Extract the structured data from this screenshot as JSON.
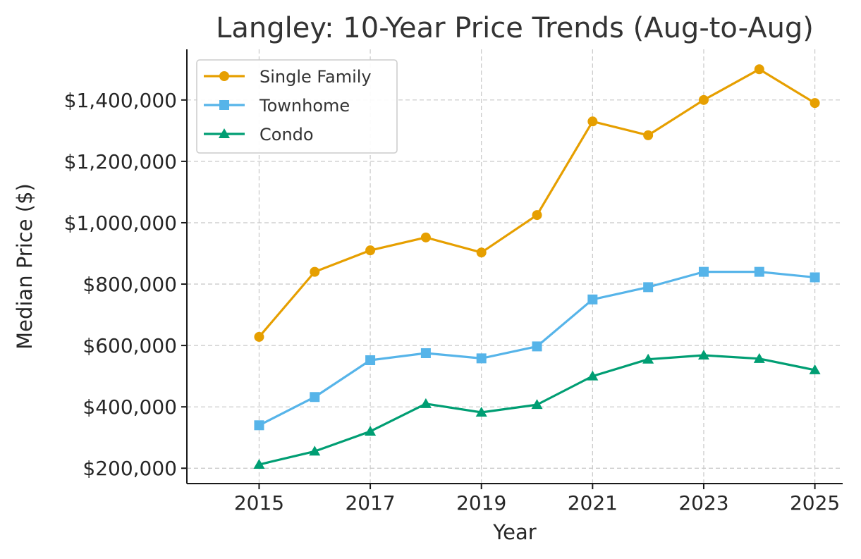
{
  "chart_data": {
    "type": "line",
    "title": "Langley: 10-Year Price Trends (Aug-to-Aug)",
    "xlabel": "Year",
    "ylabel": "Median Price ($)",
    "x": [
      2015,
      2016,
      2017,
      2018,
      2019,
      2020,
      2021,
      2022,
      2023,
      2024,
      2025
    ],
    "xlim": [
      2013.7,
      2025.5
    ],
    "ylim": [
      150000,
      1565000
    ],
    "x_ticks": [
      2015,
      2017,
      2019,
      2021,
      2023,
      2025
    ],
    "x_tick_labels": [
      "2015",
      "2017",
      "2019",
      "2021",
      "2023",
      "2025"
    ],
    "y_ticks": [
      200000,
      400000,
      600000,
      800000,
      1000000,
      1200000,
      1400000
    ],
    "y_tick_labels": [
      "$200,000",
      "$400,000",
      "$600,000",
      "$800,000",
      "$1,000,000",
      "$1,200,000",
      "$1,400,000"
    ],
    "grid": true,
    "legend_position": "top-left",
    "series": [
      {
        "name": "Single Family",
        "color": "#E69F00",
        "marker": "circle",
        "values": [
          628000,
          840000,
          910000,
          952000,
          903000,
          1025000,
          1330000,
          1285000,
          1400000,
          1500000,
          1390000
        ]
      },
      {
        "name": "Townhome",
        "color": "#56B4E9",
        "marker": "square",
        "values": [
          340000,
          432000,
          552000,
          575000,
          558000,
          597000,
          750000,
          790000,
          840000,
          840000,
          822000
        ]
      },
      {
        "name": "Condo",
        "color": "#009E73",
        "marker": "triangle",
        "values": [
          212000,
          255000,
          320000,
          410000,
          382000,
          407000,
          500000,
          555000,
          568000,
          557000,
          520000
        ]
      }
    ]
  }
}
